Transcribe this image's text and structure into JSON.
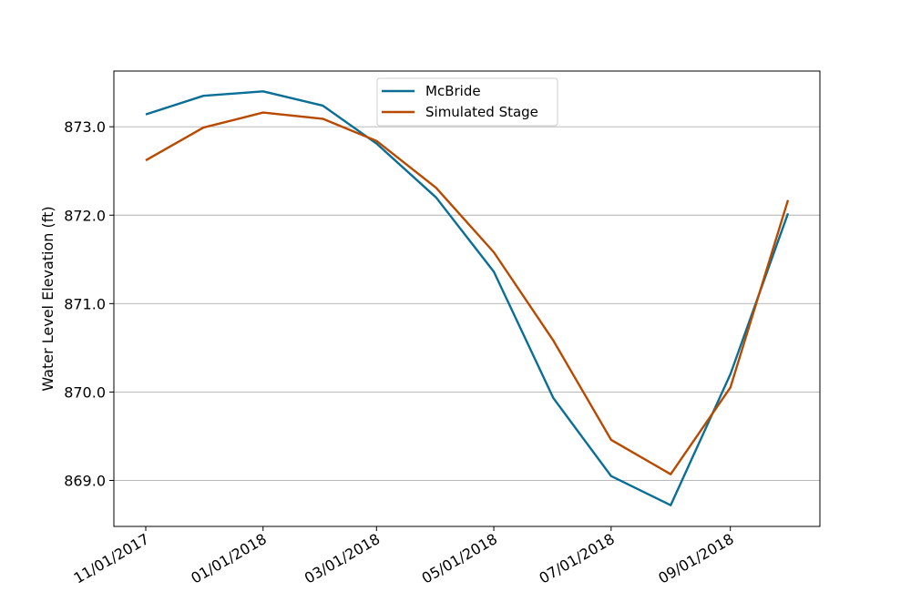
{
  "chart_data": {
    "type": "line",
    "title": "",
    "xlabel": "",
    "ylabel": "Water Level Elevation (ft)",
    "x": [
      "11/01/2017",
      "12/01/2017",
      "01/01/2018",
      "02/01/2018",
      "03/01/2018",
      "04/01/2018",
      "05/01/2018",
      "06/01/2018",
      "07/01/2018",
      "08/01/2018",
      "09/01/2018",
      "10/01/2018"
    ],
    "x_ticks": [
      "11/01/2017",
      "01/01/2018",
      "03/01/2018",
      "05/01/2018",
      "07/01/2018",
      "09/01/2018"
    ],
    "ylim": [
      868.48,
      873.63
    ],
    "y_ticks": [
      "869.0",
      "870.0",
      "871.0",
      "872.0",
      "873.0"
    ],
    "grid": "y",
    "legend_position": "top-center",
    "series": [
      {
        "name": "McBride",
        "color": "#0a6e96",
        "values": [
          873.14,
          873.35,
          873.4,
          873.24,
          872.81,
          872.2,
          871.36,
          869.93,
          869.05,
          868.72,
          870.2,
          872.02
        ]
      },
      {
        "name": "Simulated Stage",
        "color": "#b84a00",
        "values": [
          872.62,
          872.99,
          873.16,
          873.09,
          872.84,
          872.31,
          871.58,
          870.58,
          869.46,
          869.07,
          870.05,
          872.17
        ]
      }
    ]
  }
}
